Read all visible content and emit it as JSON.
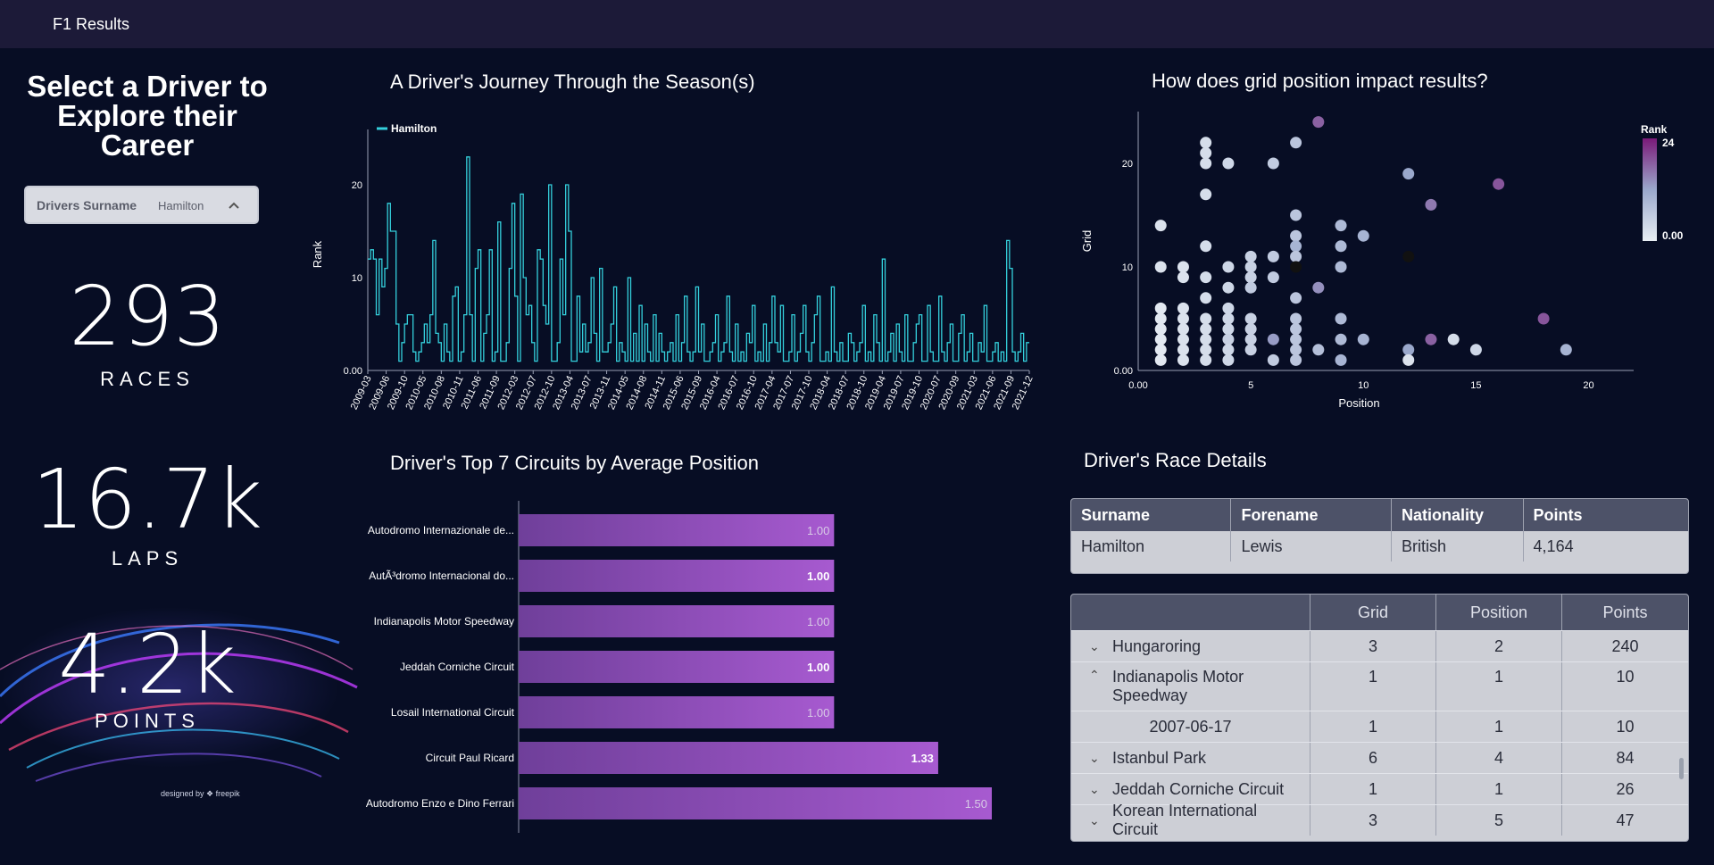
{
  "app": {
    "title": "F1 Results"
  },
  "left": {
    "heading": "Select a Driver to Explore their Career",
    "dropdown": {
      "label": "Drivers Surname",
      "value": "Hamilton"
    },
    "kpis": [
      {
        "value": "293",
        "label": "RACES"
      },
      {
        "value": "16.7k",
        "label": "LAPS"
      },
      {
        "value": "4.2k",
        "label": "POINTS"
      }
    ],
    "credit": "designed by ❖ freepik"
  },
  "chart_data": [
    {
      "type": "line",
      "title": "A Driver's Journey Through the Season(s)",
      "ylabel": "Rank",
      "xlabel": "",
      "legend": [
        "Hamilton"
      ],
      "ylim": [
        0,
        25
      ],
      "yticks": [
        "0.00",
        "10",
        "20"
      ],
      "x_tick_labels": [
        "2009-03",
        "2009-06",
        "2009-10",
        "2010-05",
        "2010-08",
        "2010-11",
        "2011-06",
        "2011-09",
        "2012-03",
        "2012-07",
        "2012-10",
        "2013-04",
        "2013-07",
        "2013-11",
        "2014-05",
        "2014-08",
        "2014-11",
        "2015-06",
        "2015-09",
        "2016-04",
        "2016-07",
        "2016-10",
        "2017-04",
        "2017-07",
        "2017-10",
        "2018-04",
        "2018-07",
        "2018-10",
        "2019-04",
        "2019-07",
        "2019-10",
        "2020-07",
        "2020-09",
        "2021-03",
        "2021-06",
        "2021-09",
        "2021-12"
      ],
      "series": [
        {
          "name": "Hamilton",
          "values": [
            12,
            13,
            12,
            6,
            12,
            9,
            11,
            18,
            15,
            15,
            5,
            1,
            3,
            5,
            6,
            6,
            2,
            1,
            2,
            3,
            5,
            3,
            6,
            14,
            4,
            3,
            1,
            5,
            2,
            1,
            8,
            9,
            1,
            2,
            6,
            23,
            6,
            1,
            11,
            13,
            1,
            4,
            6,
            13,
            1,
            2,
            16,
            1,
            1,
            3,
            11,
            18,
            8,
            1,
            19,
            10,
            6,
            7,
            3,
            1,
            13,
            12,
            7,
            5,
            20,
            1,
            1,
            3,
            12,
            6,
            20,
            15,
            1,
            1,
            8,
            2,
            5,
            2,
            3,
            10,
            4,
            1,
            11,
            2,
            2,
            3,
            5,
            9,
            1,
            3,
            2,
            1,
            10,
            1,
            4,
            1,
            7,
            1,
            5,
            2,
            1,
            6,
            1,
            4,
            2,
            1,
            2,
            3,
            1,
            6,
            1,
            3,
            8,
            2,
            1,
            2,
            9,
            2,
            5,
            1,
            1,
            2,
            3,
            6,
            1,
            2,
            3,
            8,
            2,
            1,
            5,
            1,
            2,
            1,
            4,
            3,
            7,
            1,
            2,
            1,
            5,
            1,
            3,
            8,
            3,
            2,
            7,
            1,
            1,
            2,
            6,
            1,
            2,
            4,
            7,
            2,
            1,
            3,
            6,
            8,
            1,
            1,
            2,
            1,
            9,
            2,
            1,
            3,
            1,
            1,
            4,
            3,
            1,
            2,
            3,
            7,
            1,
            2,
            1,
            6,
            3,
            1,
            12,
            1,
            2,
            4,
            1,
            5,
            2,
            1,
            6,
            1,
            1,
            3,
            5,
            6,
            1,
            1,
            7,
            2,
            1,
            1,
            8,
            2,
            1,
            3,
            5,
            1,
            1,
            4,
            6,
            1,
            2,
            4,
            1,
            1,
            3,
            2,
            7,
            1,
            1,
            2,
            3,
            1,
            2,
            1,
            14,
            11,
            2,
            1,
            2,
            4,
            1,
            3
          ]
        }
      ]
    },
    {
      "type": "scatter",
      "title": "How does grid position impact results?",
      "xlabel": "Position",
      "ylabel": "Grid",
      "xlim": [
        0,
        22
      ],
      "ylim": [
        0,
        25
      ],
      "xticks": [
        "0.00",
        "5",
        "10",
        "15",
        "20"
      ],
      "yticks": [
        "0.00",
        "10",
        "20"
      ],
      "color_legend": {
        "title": "Rank",
        "max": "24",
        "min": "0.00",
        "high_color": "#7a1a78",
        "low_color": "#e8eef4"
      },
      "points": [
        {
          "x": 1,
          "y": 14,
          "r": 2
        },
        {
          "x": 1,
          "y": 10,
          "r": 2
        },
        {
          "x": 1,
          "y": 6,
          "r": 1
        },
        {
          "x": 1,
          "y": 5,
          "r": 1
        },
        {
          "x": 1,
          "y": 4,
          "r": 1
        },
        {
          "x": 1,
          "y": 3,
          "r": 1
        },
        {
          "x": 1,
          "y": 2,
          "r": 1
        },
        {
          "x": 1,
          "y": 1,
          "r": 1
        },
        {
          "x": 2,
          "y": 10,
          "r": 2
        },
        {
          "x": 2,
          "y": 9,
          "r": 2
        },
        {
          "x": 2,
          "y": 6,
          "r": 2
        },
        {
          "x": 2,
          "y": 5,
          "r": 2
        },
        {
          "x": 2,
          "y": 4,
          "r": 2
        },
        {
          "x": 2,
          "y": 3,
          "r": 2
        },
        {
          "x": 2,
          "y": 2,
          "r": 2
        },
        {
          "x": 2,
          "y": 1,
          "r": 2
        },
        {
          "x": 3,
          "y": 22,
          "r": 3
        },
        {
          "x": 3,
          "y": 21,
          "r": 3
        },
        {
          "x": 3,
          "y": 20,
          "r": 3
        },
        {
          "x": 3,
          "y": 17,
          "r": 3
        },
        {
          "x": 3,
          "y": 12,
          "r": 3
        },
        {
          "x": 3,
          "y": 9,
          "r": 3
        },
        {
          "x": 3,
          "y": 7,
          "r": 3
        },
        {
          "x": 3,
          "y": 5,
          "r": 3
        },
        {
          "x": 3,
          "y": 4,
          "r": 3
        },
        {
          "x": 3,
          "y": 3,
          "r": 3
        },
        {
          "x": 3,
          "y": 2,
          "r": 3
        },
        {
          "x": 3,
          "y": 1,
          "r": 3
        },
        {
          "x": 4,
          "y": 20,
          "r": 4
        },
        {
          "x": 4,
          "y": 10,
          "r": 4
        },
        {
          "x": 4,
          "y": 8,
          "r": 4
        },
        {
          "x": 4,
          "y": 6,
          "r": 4
        },
        {
          "x": 4,
          "y": 5,
          "r": 4
        },
        {
          "x": 4,
          "y": 4,
          "r": 4
        },
        {
          "x": 4,
          "y": 3,
          "r": 5
        },
        {
          "x": 4,
          "y": 2,
          "r": 4
        },
        {
          "x": 4,
          "y": 1,
          "r": 4
        },
        {
          "x": 5,
          "y": 11,
          "r": 5
        },
        {
          "x": 5,
          "y": 10,
          "r": 5
        },
        {
          "x": 5,
          "y": 9,
          "r": 5
        },
        {
          "x": 5,
          "y": 8,
          "r": 6
        },
        {
          "x": 5,
          "y": 5,
          "r": 5
        },
        {
          "x": 5,
          "y": 4,
          "r": 5
        },
        {
          "x": 5,
          "y": 3,
          "r": 5
        },
        {
          "x": 5,
          "y": 2,
          "r": 5
        },
        {
          "x": 6,
          "y": 20,
          "r": 6
        },
        {
          "x": 6,
          "y": 11,
          "r": 6
        },
        {
          "x": 6,
          "y": 9,
          "r": 6
        },
        {
          "x": 6,
          "y": 3,
          "r": 13
        },
        {
          "x": 6,
          "y": 1,
          "r": 6
        },
        {
          "x": 7,
          "y": 22,
          "r": 7
        },
        {
          "x": 7,
          "y": 15,
          "r": 7
        },
        {
          "x": 7,
          "y": 13,
          "r": 7
        },
        {
          "x": 7,
          "y": 12,
          "r": 10
        },
        {
          "x": 7,
          "y": 11,
          "r": 7
        },
        {
          "x": 7,
          "y": 10,
          "r": 0
        },
        {
          "x": 7,
          "y": 7,
          "r": 7
        },
        {
          "x": 7,
          "y": 5,
          "r": 7
        },
        {
          "x": 7,
          "y": 4,
          "r": 7
        },
        {
          "x": 7,
          "y": 3,
          "r": 7
        },
        {
          "x": 7,
          "y": 2,
          "r": 7
        },
        {
          "x": 7,
          "y": 1,
          "r": 7
        },
        {
          "x": 8,
          "y": 24,
          "r": 18
        },
        {
          "x": 8,
          "y": 8,
          "r": 14
        },
        {
          "x": 8,
          "y": 2,
          "r": 8
        },
        {
          "x": 9,
          "y": 14,
          "r": 9
        },
        {
          "x": 9,
          "y": 12,
          "r": 9
        },
        {
          "x": 9,
          "y": 10,
          "r": 9
        },
        {
          "x": 9,
          "y": 5,
          "r": 9
        },
        {
          "x": 9,
          "y": 3,
          "r": 9
        },
        {
          "x": 9,
          "y": 1,
          "r": 10
        },
        {
          "x": 10,
          "y": 13,
          "r": 10
        },
        {
          "x": 10,
          "y": 3,
          "r": 10
        },
        {
          "x": 12,
          "y": 19,
          "r": 12
        },
        {
          "x": 12,
          "y": 11,
          "r": 0
        },
        {
          "x": 12,
          "y": 2,
          "r": 12
        },
        {
          "x": 12,
          "y": 1,
          "r": 2
        },
        {
          "x": 13,
          "y": 16,
          "r": 16
        },
        {
          "x": 13,
          "y": 3,
          "r": 18
        },
        {
          "x": 14,
          "y": 3,
          "r": 3
        },
        {
          "x": 15,
          "y": 2,
          "r": 4
        },
        {
          "x": 16,
          "y": 18,
          "r": 19
        },
        {
          "x": 18,
          "y": 5,
          "r": 19
        },
        {
          "x": 19,
          "y": 2,
          "r": 10
        }
      ]
    },
    {
      "type": "bar",
      "orientation": "horizontal",
      "title": "Driver's Top 7 Circuits by Average Position",
      "categories": [
        "Autodromo Internazionale de...",
        "AutÃ³dromo Internacional do...",
        "Indianapolis Motor Speedway",
        "Jeddah Corniche Circuit",
        "Losail International Circuit",
        "Circuit Paul Ricard",
        "Autodromo Enzo e Dino Ferrari"
      ],
      "values": [
        1.0,
        1.0,
        1.0,
        1.0,
        1.0,
        1.33,
        1.5
      ],
      "value_labels": [
        "1.00",
        "1.00",
        "1.00",
        "1.00",
        "1.00",
        "1.33",
        "1.50"
      ],
      "xlim": [
        0,
        1.5
      ]
    }
  ],
  "details": {
    "title": "Driver's Race Details",
    "driver_table": {
      "columns": [
        "Surname",
        "Forename",
        "Nationality",
        "Points"
      ],
      "row": [
        "Hamilton",
        "Lewis",
        "British",
        "4,164"
      ]
    },
    "circuit_table": {
      "columns": [
        "",
        "Grid",
        "Position",
        "Points"
      ],
      "rows": [
        {
          "name": "Hungaroring",
          "grid": "3",
          "position": "2",
          "points": "240",
          "expanded": false
        },
        {
          "name": "Indianapolis Motor Speedway",
          "grid": "1",
          "position": "1",
          "points": "10",
          "expanded": true
        },
        {
          "name": "2007-06-17",
          "grid": "1",
          "position": "1",
          "points": "10",
          "child": true
        },
        {
          "name": "Istanbul Park",
          "grid": "6",
          "position": "4",
          "points": "84",
          "expanded": false
        },
        {
          "name": "Jeddah Corniche Circuit",
          "grid": "1",
          "position": "1",
          "points": "26",
          "expanded": false
        },
        {
          "name": "Korean International Circuit",
          "grid": "3",
          "position": "5",
          "points": "47",
          "expanded": false
        }
      ]
    }
  }
}
